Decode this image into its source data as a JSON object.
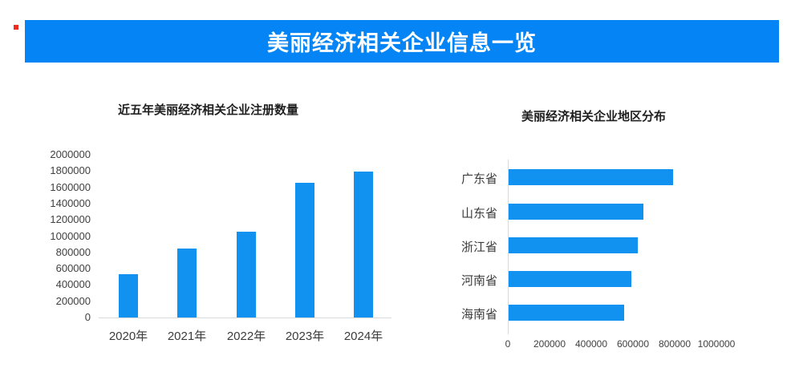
{
  "header": {
    "title": "美丽经济相关企业信息一览",
    "bg_color": "#0584f5",
    "text_color": "#ffffff",
    "red_mark_color": "#ee2b1c"
  },
  "chart_data": [
    {
      "type": "bar",
      "orientation": "vertical",
      "title": "近五年美丽经济相关企业注册数量",
      "categories": [
        "2020年",
        "2021年",
        "2022年",
        "2023年",
        "2024年"
      ],
      "values": [
        530000,
        845000,
        1050000,
        1660000,
        1790000
      ],
      "xlabel": "",
      "ylabel": "",
      "ylim": [
        0,
        2000000
      ],
      "ytick_labels": [
        "0",
        "200000",
        "400000",
        "600000",
        "800000",
        "1000000",
        "1200000",
        "1400000",
        "1600000",
        "1800000",
        "2000000"
      ],
      "grid": false,
      "legend": "none",
      "bar_color": "#1191f0"
    },
    {
      "type": "bar",
      "orientation": "horizontal",
      "title": "美丽经济相关企业地区分布",
      "categories": [
        "广东省",
        "山东省",
        "浙江省",
        "河南省",
        "海南省"
      ],
      "values": [
        790000,
        645000,
        620000,
        590000,
        555000
      ],
      "xlabel": "",
      "ylabel": "",
      "xlim": [
        0,
        1000000
      ],
      "xtick_labels": [
        "0",
        "200000",
        "400000",
        "600000",
        "800000",
        "1000000"
      ],
      "grid": false,
      "legend": "none",
      "bar_color": "#1191f0"
    }
  ]
}
